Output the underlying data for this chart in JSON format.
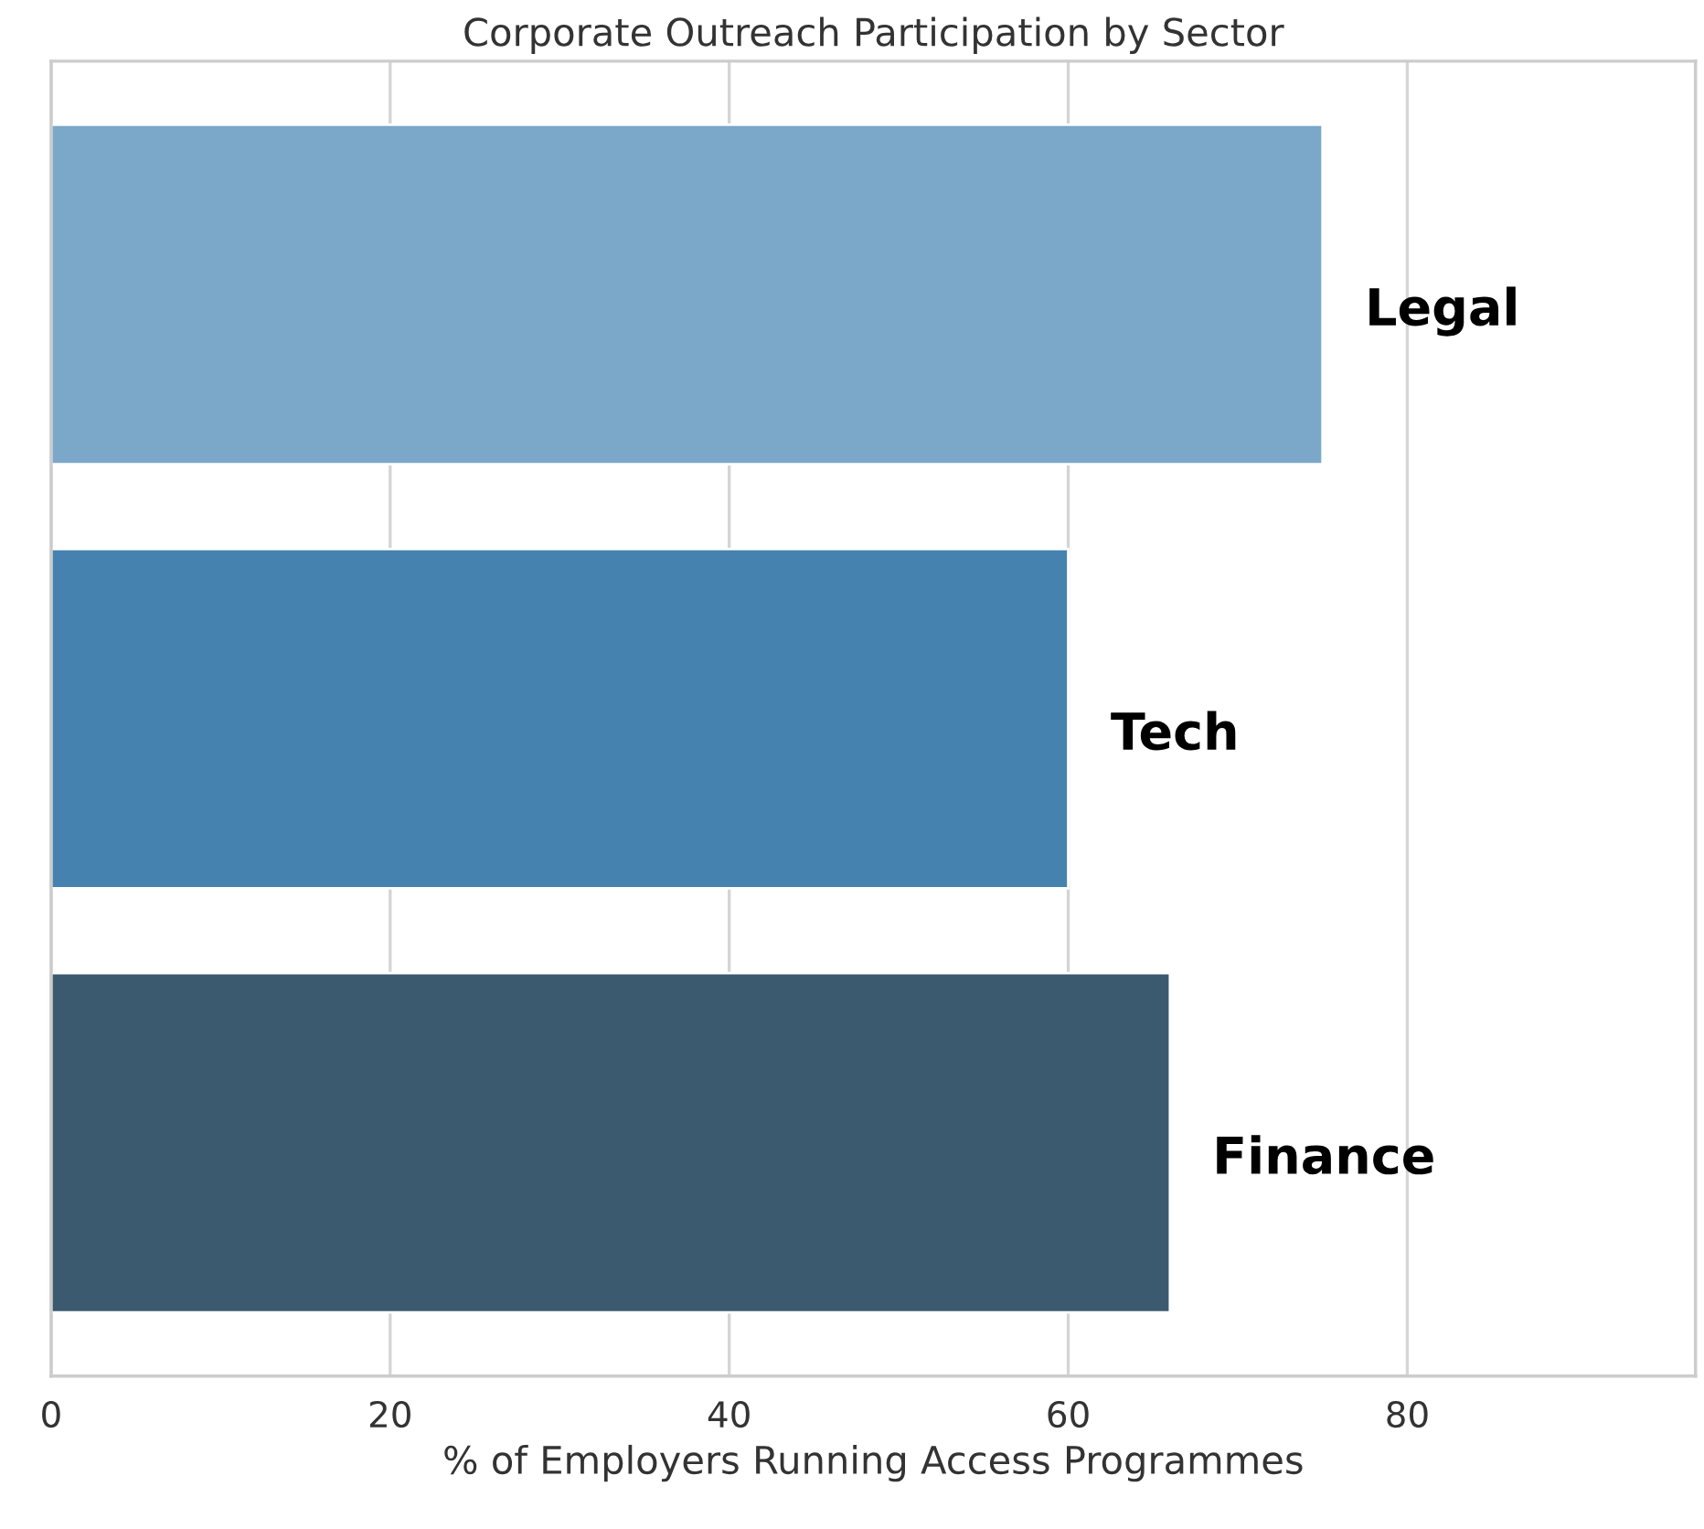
{
  "chart_data": {
    "type": "bar",
    "orientation": "horizontal",
    "title": "Corporate Outreach Participation by Sector",
    "xlabel": "% of Employers Running Access Programmes",
    "categories": [
      "Legal",
      "Tech",
      "Finance"
    ],
    "values": [
      75,
      60,
      66
    ],
    "colors": [
      "#7ba7c9",
      "#4682b0",
      "#3b5a70"
    ],
    "xlim": [
      0,
      97
    ],
    "xticks": [
      0,
      20,
      40,
      60,
      80
    ],
    "grid": "x",
    "tick_labels": "x"
  }
}
